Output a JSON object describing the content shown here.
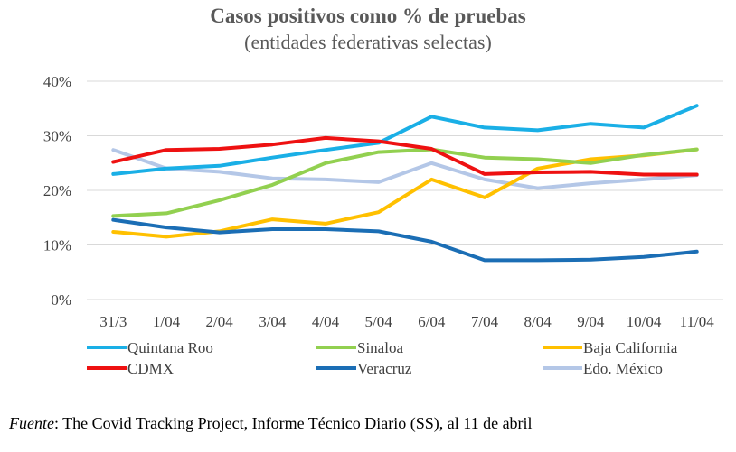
{
  "chart_data": {
    "type": "line",
    "title": "Casos positivos como % de pruebas",
    "subtitle": "(entidades federativas selectas)",
    "categories": [
      "31/3",
      "1/04",
      "2/04",
      "3/04",
      "4/04",
      "5/04",
      "6/04",
      "7/04",
      "8/04",
      "9/04",
      "10/04",
      "11/04"
    ],
    "y_ticks": [
      "0%",
      "10%",
      "20%",
      "30%",
      "40%"
    ],
    "ylim": [
      0,
      40
    ],
    "grid": true,
    "legend_position": "bottom",
    "series": [
      {
        "name": "Quintana Roo",
        "color": "#1AAFE6",
        "values": [
          23.0,
          24.0,
          24.5,
          26.0,
          27.4,
          28.7,
          33.5,
          31.5,
          31.0,
          32.2,
          31.5,
          35.5
        ]
      },
      {
        "name": "Sinaloa",
        "color": "#92D050",
        "values": [
          15.3,
          15.8,
          18.2,
          21.0,
          25.0,
          27.0,
          27.5,
          26.0,
          25.7,
          25.0,
          26.5,
          27.5
        ]
      },
      {
        "name": "Baja California",
        "color": "#FFC000",
        "values": [
          12.4,
          11.5,
          12.5,
          14.7,
          13.9,
          16.0,
          22.0,
          18.7,
          24.0,
          25.7,
          26.4,
          27.5
        ]
      },
      {
        "name": "CDMX",
        "color": "#EE1111",
        "values": [
          25.2,
          27.4,
          27.6,
          28.4,
          29.6,
          29.0,
          27.6,
          23.0,
          23.3,
          23.4,
          22.9,
          22.9
        ]
      },
      {
        "name": "Veracruz",
        "color": "#1B6EB5",
        "values": [
          14.6,
          13.2,
          12.3,
          12.9,
          12.9,
          12.5,
          10.6,
          7.2,
          7.2,
          7.3,
          7.8,
          8.8
        ]
      },
      {
        "name": "Edo. México",
        "color": "#B4C7E7",
        "values": [
          27.4,
          24.0,
          23.4,
          22.2,
          22.0,
          21.5,
          25.0,
          22.0,
          20.4,
          21.3,
          22.0,
          22.8
        ]
      }
    ]
  },
  "source": {
    "label": "Fuente",
    "text": ": The Covid Tracking Project, Informe Técnico Diario (SS), al 11 de abril"
  }
}
